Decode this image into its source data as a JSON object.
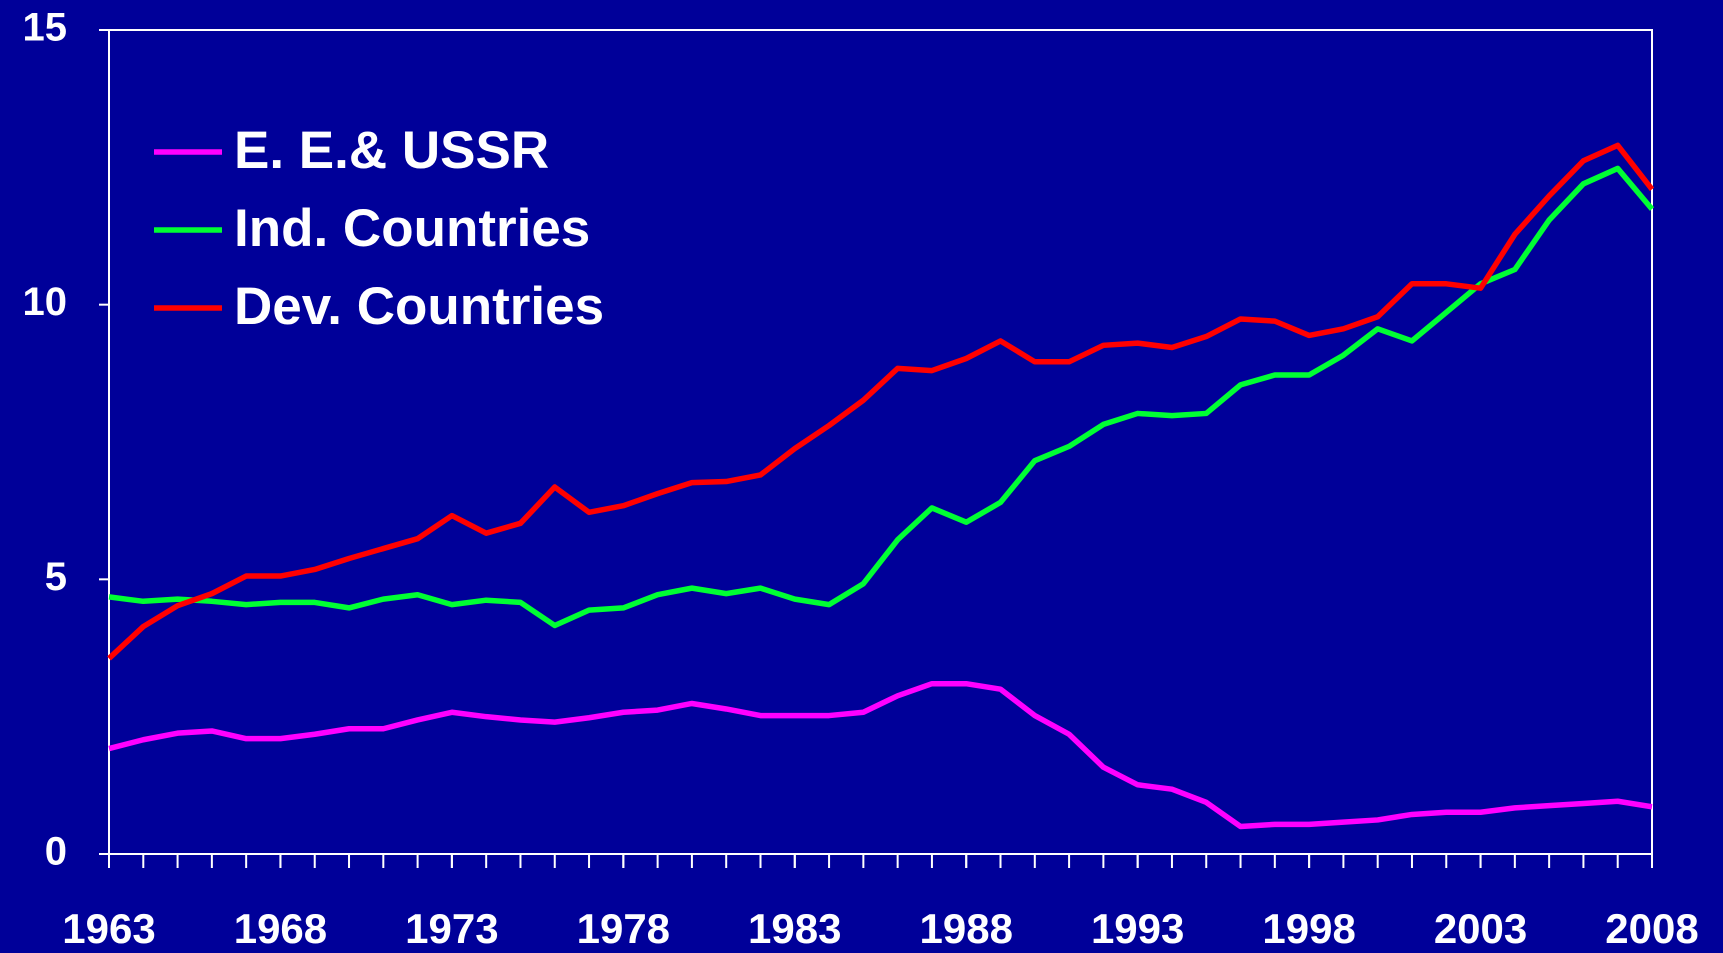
{
  "chart_data": {
    "type": "line",
    "x": [
      1963,
      1964,
      1965,
      1966,
      1967,
      1968,
      1969,
      1970,
      1971,
      1972,
      1973,
      1974,
      1975,
      1976,
      1977,
      1978,
      1979,
      1980,
      1981,
      1982,
      1983,
      1984,
      1985,
      1986,
      1987,
      1988,
      1989,
      1990,
      1991,
      1992,
      1993,
      1994,
      1995,
      1996,
      1997,
      1998,
      1999,
      2000,
      2001,
      2002,
      2003,
      2004,
      2005,
      2006,
      2007,
      2008
    ],
    "series": [
      {
        "name": "E. E.& USSR",
        "color": "#ff00ff",
        "values": [
          1.92,
          2.08,
          2.2,
          2.24,
          2.1,
          2.1,
          2.18,
          2.28,
          2.28,
          2.44,
          2.58,
          2.5,
          2.44,
          2.4,
          2.48,
          2.58,
          2.62,
          2.74,
          2.64,
          2.52,
          2.52,
          2.52,
          2.58,
          2.88,
          3.1,
          3.1,
          3.0,
          2.52,
          2.18,
          1.58,
          1.26,
          1.18,
          0.94,
          0.5,
          0.54,
          0.54,
          0.58,
          0.62,
          0.72,
          0.76,
          0.76,
          0.84,
          0.88,
          0.92,
          0.96,
          0.86
        ]
      },
      {
        "name": "Ind. Countries",
        "color": "#00ff33",
        "values": [
          4.68,
          4.6,
          4.64,
          4.6,
          4.54,
          4.58,
          4.58,
          4.48,
          4.64,
          4.72,
          4.54,
          4.62,
          4.58,
          4.16,
          4.44,
          4.48,
          4.72,
          4.84,
          4.74,
          4.84,
          4.64,
          4.54,
          4.92,
          5.72,
          6.3,
          6.04,
          6.4,
          7.16,
          7.42,
          7.82,
          8.02,
          7.98,
          8.02,
          8.54,
          8.72,
          8.72,
          9.08,
          9.56,
          9.34,
          9.86,
          10.38,
          10.64,
          11.54,
          12.2,
          12.48,
          11.74
        ]
      },
      {
        "name": "Dev. Countries",
        "color": "#ff0000",
        "values": [
          3.56,
          4.14,
          4.52,
          4.74,
          5.06,
          5.06,
          5.18,
          5.38,
          5.56,
          5.74,
          6.16,
          5.84,
          6.02,
          6.68,
          6.22,
          6.34,
          6.56,
          6.76,
          6.78,
          6.9,
          7.38,
          7.8,
          8.26,
          8.84,
          8.8,
          9.02,
          9.34,
          8.96,
          8.96,
          9.26,
          9.3,
          9.22,
          9.42,
          9.74,
          9.7,
          9.44,
          9.56,
          9.78,
          10.38,
          10.38,
          10.3,
          11.28,
          11.98,
          12.62,
          12.9,
          12.1
        ]
      }
    ],
    "xlim": [
      1963,
      2008
    ],
    "xticks": [
      1963,
      1968,
      1973,
      1978,
      1983,
      1988,
      1993,
      1998,
      2003,
      2008
    ],
    "ylim": [
      0,
      15
    ],
    "yticks": [
      0,
      5,
      10,
      15
    ],
    "legend": "upper-left"
  }
}
